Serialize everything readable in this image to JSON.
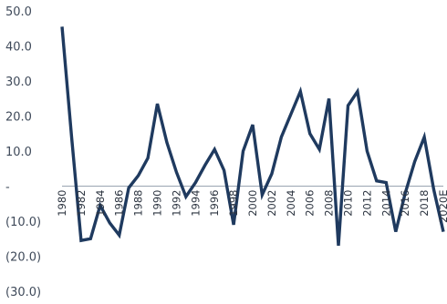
{
  "chart_data": {
    "type": "line",
    "title": "",
    "xlabel": "",
    "ylabel": "",
    "ylim": [
      -30,
      50
    ],
    "y_ticks": [
      50,
      40,
      30,
      20,
      10,
      0,
      -10,
      -20,
      -30
    ],
    "y_tick_labels": [
      "50.0",
      "40.0",
      "30.0",
      "20.0",
      "10.0",
      "-",
      "(10.0)",
      "(20.0)",
      "(30.0)"
    ],
    "x_tick_labels": [
      "1980",
      "1982",
      "1984",
      "1986",
      "1988",
      "1990",
      "1992",
      "1994",
      "1996",
      "1998",
      "2000",
      "2002",
      "2004",
      "2006",
      "2008",
      "2010",
      "2012",
      "2014",
      "2016",
      "2018",
      "2020E"
    ],
    "grid": false,
    "legend": "none",
    "colors": {
      "line": "#1f3a5f",
      "axis": "#9aa4b1",
      "tick_text": "#3f4a5a"
    },
    "series": [
      {
        "x": [
          "1980",
          "1981",
          "1982",
          "1983",
          "1984",
          "1985",
          "1986",
          "1987",
          "1988",
          "1989",
          "1990",
          "1991",
          "1992",
          "1993",
          "1994",
          "1995",
          "1996",
          "1997",
          "1998",
          "1999",
          "2000",
          "2001",
          "2002",
          "2003",
          "2004",
          "2005",
          "2006",
          "2007",
          "2008",
          "2009",
          "2010",
          "2011",
          "2012",
          "2013",
          "2014",
          "2015",
          "2016",
          "2017",
          "2018",
          "2019",
          "2020E"
        ],
        "values": [
          45.5,
          14.0,
          -15.5,
          -15.0,
          -5.5,
          -10.5,
          -14.0,
          -0.5,
          3.0,
          8.0,
          23.5,
          12.5,
          4.0,
          -3.0,
          1.0,
          6.0,
          10.5,
          4.5,
          -11.0,
          10.0,
          17.5,
          -2.5,
          3.5,
          14.0,
          20.5,
          27.0,
          15.0,
          10.5,
          25.0,
          -17.0,
          23.0,
          27.0,
          10.0,
          1.5,
          1.0,
          -13.0,
          -2.0,
          7.0,
          14.0,
          -1.0,
          -13.0
        ]
      }
    ]
  }
}
